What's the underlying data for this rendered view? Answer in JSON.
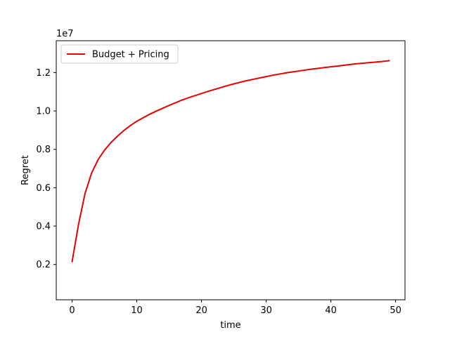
{
  "chart_data": {
    "type": "line",
    "title": "",
    "xlabel": "time",
    "ylabel": "Regret",
    "offset_text": "1e7",
    "xlim": [
      -2.45,
      51.45
    ],
    "ylim": [
      0.16,
      13.66
    ],
    "y_scale_note": "values in units of 1e7 (shown as tick labels)",
    "x_ticks": [
      0,
      10,
      20,
      30,
      40,
      50
    ],
    "x_tick_labels": [
      "0",
      "10",
      "20",
      "30",
      "40",
      "50"
    ],
    "y_ticks": [
      0.2,
      0.4,
      0.6,
      0.8,
      1.0,
      1.2
    ],
    "y_tick_labels": [
      "0.2",
      "0.4",
      "0.6",
      "0.8",
      "1.0",
      "1.2"
    ],
    "grid": false,
    "legend_position": "top-left",
    "series": [
      {
        "name": "Budget + Pricing",
        "color": "#e50000",
        "x": [
          0,
          1,
          2,
          3,
          4,
          5,
          6,
          7,
          8,
          9,
          10,
          11,
          12,
          13,
          14,
          15,
          16,
          17,
          18,
          19,
          20,
          21,
          22,
          23,
          24,
          25,
          26,
          27,
          28,
          29,
          30,
          31,
          32,
          33,
          34,
          35,
          36,
          37,
          38,
          39,
          40,
          41,
          42,
          43,
          44,
          45,
          46,
          47,
          48,
          49
        ],
        "y": [
          0.215,
          0.41,
          0.57,
          0.675,
          0.745,
          0.795,
          0.835,
          0.868,
          0.898,
          0.924,
          0.946,
          0.965,
          0.983,
          0.999,
          1.014,
          1.029,
          1.043,
          1.057,
          1.069,
          1.08,
          1.091,
          1.102,
          1.112,
          1.122,
          1.132,
          1.141,
          1.15,
          1.158,
          1.165,
          1.172,
          1.179,
          1.186,
          1.192,
          1.198,
          1.203,
          1.208,
          1.213,
          1.218,
          1.222,
          1.226,
          1.23,
          1.234,
          1.238,
          1.242,
          1.246,
          1.249,
          1.252,
          1.255,
          1.258,
          1.262
        ]
      }
    ]
  }
}
